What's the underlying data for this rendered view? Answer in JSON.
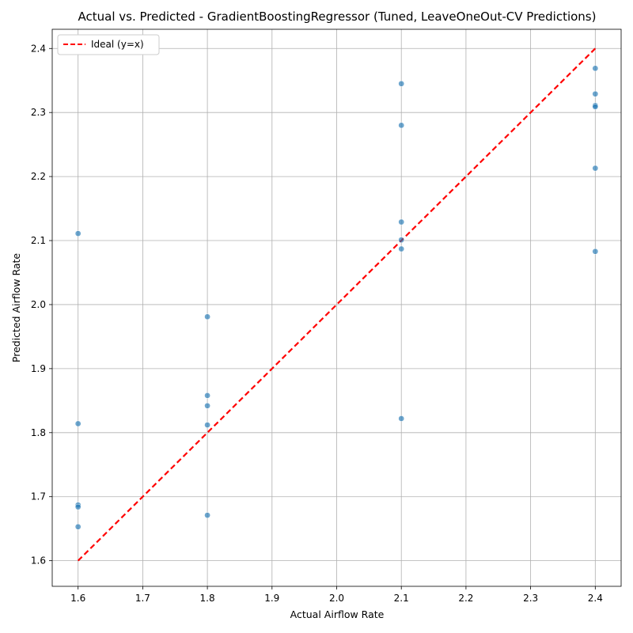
{
  "chart_data": {
    "type": "scatter",
    "title": "Actual vs. Predicted - GradientBoostingRegressor (Tuned, LeaveOneOut-CV Predictions)",
    "xlabel": "Actual Airflow Rate",
    "ylabel": "Predicted Airflow Rate",
    "xlim": [
      1.56,
      2.44
    ],
    "ylim": [
      1.56,
      2.43
    ],
    "xticks": [
      "1.6",
      "1.7",
      "1.8",
      "1.9",
      "2.0",
      "2.1",
      "2.2",
      "2.3",
      "2.4"
    ],
    "yticks": [
      "1.6",
      "1.7",
      "1.8",
      "1.9",
      "2.0",
      "2.1",
      "2.2",
      "2.3",
      "2.4"
    ],
    "grid": true,
    "legend_position": "top-left",
    "colors": {
      "points": "#1f77b4",
      "ideal_line": "#ff0000",
      "grid": "#b0b0b0"
    },
    "ideal_line": {
      "label": "Ideal (y=x)",
      "from": [
        1.6,
        1.6
      ],
      "to": [
        2.4,
        2.4
      ]
    },
    "points": [
      {
        "x": 1.6,
        "y": 2.111
      },
      {
        "x": 1.6,
        "y": 1.814
      },
      {
        "x": 1.6,
        "y": 1.687
      },
      {
        "x": 1.6,
        "y": 1.684
      },
      {
        "x": 1.6,
        "y": 1.653
      },
      {
        "x": 1.8,
        "y": 1.981
      },
      {
        "x": 1.8,
        "y": 1.858
      },
      {
        "x": 1.8,
        "y": 1.842
      },
      {
        "x": 1.8,
        "y": 1.812
      },
      {
        "x": 1.8,
        "y": 1.671
      },
      {
        "x": 2.1,
        "y": 2.345
      },
      {
        "x": 2.1,
        "y": 2.28
      },
      {
        "x": 2.1,
        "y": 2.129
      },
      {
        "x": 2.1,
        "y": 2.101
      },
      {
        "x": 2.1,
        "y": 2.087
      },
      {
        "x": 2.1,
        "y": 1.822
      },
      {
        "x": 2.4,
        "y": 2.369
      },
      {
        "x": 2.4,
        "y": 2.329
      },
      {
        "x": 2.4,
        "y": 2.311
      },
      {
        "x": 2.4,
        "y": 2.309
      },
      {
        "x": 2.4,
        "y": 2.213
      },
      {
        "x": 2.4,
        "y": 2.083
      }
    ]
  }
}
